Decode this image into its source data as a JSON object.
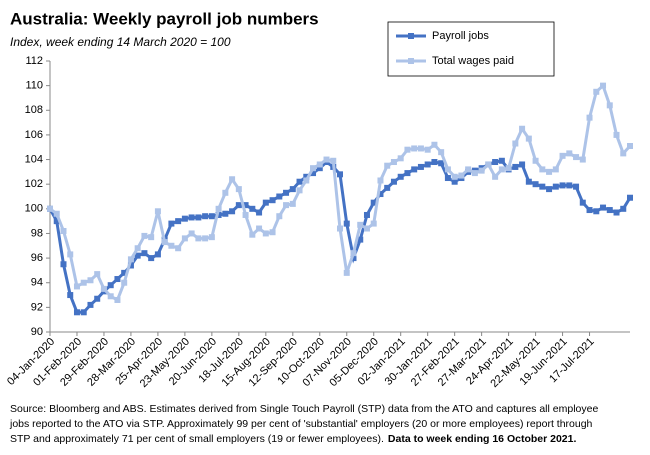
{
  "chart_data": {
    "type": "line",
    "title": "Australia:  Weekly payroll job numbers",
    "subtitle": "Index, week ending 14 March 2020  = 100",
    "categories": [
      "04-Jan-2020",
      null,
      null,
      null,
      "01-Feb-2020",
      null,
      null,
      null,
      "29-Feb-2020",
      null,
      null,
      null,
      "28-Mar-2020",
      null,
      null,
      null,
      "25-Apr-2020",
      null,
      null,
      null,
      "23-May-2020",
      null,
      null,
      null,
      "20-Jun-2020",
      null,
      null,
      null,
      "18-Jul-2020",
      null,
      null,
      null,
      "15-Aug-2020",
      null,
      null,
      null,
      "12-Sep-2020",
      null,
      null,
      null,
      "10-Oct-2020",
      null,
      null,
      null,
      "07-Nov-2020",
      null,
      null,
      null,
      "05-Dec-2020",
      null,
      null,
      null,
      "02-Jan-2021",
      null,
      null,
      null,
      "30-Jan-2021",
      null,
      null,
      null,
      "27-Feb-2021",
      null,
      null,
      null,
      "27-Mar-2021",
      null,
      null,
      null,
      "24-Apr-2021",
      null,
      null,
      null,
      "22-May-2021",
      null,
      null,
      null,
      "19-Jun-2021",
      null,
      null,
      null,
      "17-Jul-2021",
      null,
      null,
      null,
      null,
      null,
      null
    ],
    "series": [
      {
        "name": "Payroll jobs",
        "color": "#4472c4",
        "values": [
          100,
          99,
          95.5,
          93,
          91.6,
          91.6,
          92.2,
          92.7,
          93.3,
          93.8,
          94.3,
          94.8,
          95.4,
          96.2,
          96.4,
          96,
          96.3,
          97.5,
          98.8,
          99,
          99.2,
          99.3,
          99.3,
          99.4,
          99.4,
          99.5,
          99.6,
          99.8,
          100.3,
          100.3,
          100,
          99.7,
          100.5,
          100.7,
          101,
          101.3,
          101.6,
          102.2,
          102.6,
          102.9,
          103.3,
          103.8,
          103.4,
          102.8,
          98.8,
          96,
          97.5,
          99.5,
          100.5,
          101.2,
          101.7,
          102.2,
          102.6,
          102.9,
          103.2,
          103.4,
          103.6,
          103.8,
          103.7,
          102.5,
          102.2,
          102.5,
          103,
          103.1,
          103.3,
          103.6,
          103.8,
          103.9,
          103.2,
          103.4,
          103.6,
          102.2,
          102,
          101.8,
          101.6,
          101.8,
          101.9,
          101.9,
          101.8,
          100.5,
          99.9,
          99.8,
          100.1,
          99.9,
          99.7,
          100,
          100.9
        ]
      },
      {
        "name": "Total wages paid",
        "color": "#adc3e8",
        "values": [
          100,
          99.6,
          98.2,
          96.3,
          93.7,
          94,
          94.2,
          94.7,
          93.5,
          92.9,
          92.6,
          94,
          95.9,
          96.8,
          97.8,
          97.7,
          99.8,
          97.3,
          97,
          96.8,
          97.6,
          98,
          97.6,
          97.6,
          97.7,
          100,
          101.3,
          102.4,
          101.6,
          99.5,
          97.9,
          98.4,
          98,
          98.1,
          99.4,
          100.3,
          100.4,
          101.5,
          102.3,
          103.3,
          103.6,
          104,
          103.9,
          98.4,
          94.8,
          96.4,
          98.7,
          98.4,
          98.8,
          102.3,
          103.5,
          103.8,
          104.1,
          104.8,
          104.9,
          104.9,
          104.8,
          105.2,
          104.6,
          103.2,
          102.6,
          102.7,
          103.2,
          102.9,
          103.1,
          103.6,
          102.6,
          103.2,
          103.3,
          105.3,
          106.5,
          105.7,
          103.9,
          103.2,
          103,
          103.2,
          104.3,
          104.5,
          104.2,
          104,
          107.4,
          109.5,
          110,
          108.4,
          106,
          104.5,
          105.1
        ]
      }
    ],
    "ylim": [
      90,
      112
    ],
    "yticks": [
      90,
      92,
      94,
      96,
      98,
      100,
      102,
      104,
      106,
      108,
      110,
      112
    ],
    "legend": "upper right",
    "source": [
      "Source: Bloomberg and ABS.  Estimates derived from Single Touch Payroll (STP) data from the ATO and captures all employee",
      "jobs reported to the ATO via STP.  Approximately 99 per cent of 'substantial' employers (20 or more employees) report through",
      "STP and approximately 71 per cent of small employers (19 or fewer employees)."
    ],
    "source_note": "Data to week ending  16 October 2021."
  }
}
